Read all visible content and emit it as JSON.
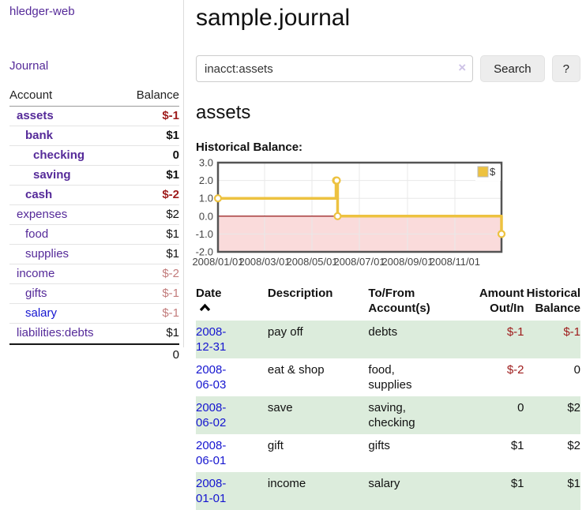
{
  "colors": {
    "accent_purple": "#552a99",
    "link_blue": "#1515d0",
    "negative_strong": "#9e1b1b",
    "negative_soft": "#c27c7c",
    "row_stripe_green": "#dcecdc"
  },
  "sidebar": {
    "brand": "hledger-web",
    "nav": {
      "journal": "Journal"
    },
    "accounts_table": {
      "headers": {
        "account": "Account",
        "balance": "Balance"
      },
      "rows": [
        {
          "name": "assets",
          "balance": "$-1"
        },
        {
          "name": "bank",
          "balance": "$1"
        },
        {
          "name": "checking",
          "balance": "0"
        },
        {
          "name": "saving",
          "balance": "$1"
        },
        {
          "name": "cash",
          "balance": "$-2"
        },
        {
          "name": "expenses",
          "balance": "$2"
        },
        {
          "name": "food",
          "balance": "$1"
        },
        {
          "name": "supplies",
          "balance": "$1"
        },
        {
          "name": "income",
          "balance": "$-2"
        },
        {
          "name": "gifts",
          "balance": "$-1"
        },
        {
          "name": "salary",
          "balance": "$-1"
        },
        {
          "name": "liabilities:debts",
          "balance": "$1"
        }
      ],
      "total": "0"
    }
  },
  "header": {
    "title": "sample.journal"
  },
  "search": {
    "value": "inacct:assets",
    "clear_icon": "×",
    "button_label": "Search",
    "help_label": "?"
  },
  "account_page": {
    "heading": "assets",
    "chart_label": "Historical Balance:"
  },
  "chart_data": {
    "type": "line",
    "title": "Historical Balance",
    "step": true,
    "grid": true,
    "x_range": [
      "2008-01-01",
      "2008-12-31"
    ],
    "total_days": 365,
    "ylim": [
      -2,
      3
    ],
    "yticks": [
      3.0,
      2.0,
      1.0,
      0.0,
      -1.0,
      -2.0
    ],
    "xticks": [
      {
        "label": "2008/01/01",
        "day": 0
      },
      {
        "label": "2008/03/01",
        "day": 60
      },
      {
        "label": "2008/05/01",
        "day": 121
      },
      {
        "label": "2008/07/01",
        "day": 182
      },
      {
        "label": "2008/09/01",
        "day": 244
      },
      {
        "label": "2008/11/01",
        "day": 305
      }
    ],
    "series": [
      {
        "name": "$",
        "color": "#EDC240",
        "points": [
          {
            "date": "2008-01-01",
            "day": 0,
            "value": 1
          },
          {
            "date": "2008-06-01",
            "day": 152,
            "value": 2
          },
          {
            "date": "2008-06-02",
            "day": 153,
            "value": 2
          },
          {
            "date": "2008-06-03",
            "day": 154,
            "value": 0
          },
          {
            "date": "2008-12-31",
            "day": 365,
            "value": -1
          }
        ]
      }
    ],
    "negative_fill": "#fadbdb",
    "zero_line_color": "#8b0000",
    "legend": {
      "position": "top-right",
      "label": "$"
    }
  },
  "register": {
    "headers": {
      "date": "Date",
      "description": "Description",
      "accounts": "To/From Account(s)",
      "amount": "Amount Out/In",
      "balance": "Historical Balance"
    },
    "rows": [
      {
        "date": "2008-12-31",
        "description": "pay off",
        "accounts": "debts",
        "amount": "$-1",
        "balance": "$-1"
      },
      {
        "date": "2008-06-03",
        "description": "eat & shop",
        "accounts": "food, supplies",
        "amount": "$-2",
        "balance": "0"
      },
      {
        "date": "2008-06-02",
        "description": "save",
        "accounts": "saving, checking",
        "amount": "0",
        "balance": "$2"
      },
      {
        "date": "2008-06-01",
        "description": "gift",
        "accounts": "gifts",
        "amount": "$1",
        "balance": "$2"
      },
      {
        "date": "2008-01-01",
        "description": "income",
        "accounts": "salary",
        "amount": "$1",
        "balance": "$1"
      }
    ]
  }
}
